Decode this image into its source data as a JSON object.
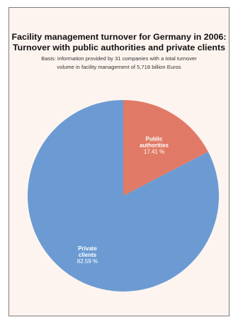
{
  "chart_data": {
    "type": "pie",
    "title": "Facility management turnover for Germany in 2006: Turnover with public authorities and private clients",
    "title_lines": [
      "Facility management turnover for Germany in 2006:",
      "Turnover with public authorities and private clients"
    ],
    "subtitle_lines": [
      "Basis: information provided by 31 companies with a total turnover",
      "volume in facility management of 5,718 billion Euros"
    ],
    "slices": [
      {
        "label_lines": [
          "Public",
          "authorities"
        ],
        "value": 17.41,
        "value_label": "17.41 %",
        "color": "#e07a66"
      },
      {
        "label_lines": [
          "Private",
          "clients"
        ],
        "value": 82.59,
        "value_label": "82.59 %",
        "color": "#6b9bd2"
      }
    ],
    "start_angle": "12 o'clock, clockwise"
  }
}
